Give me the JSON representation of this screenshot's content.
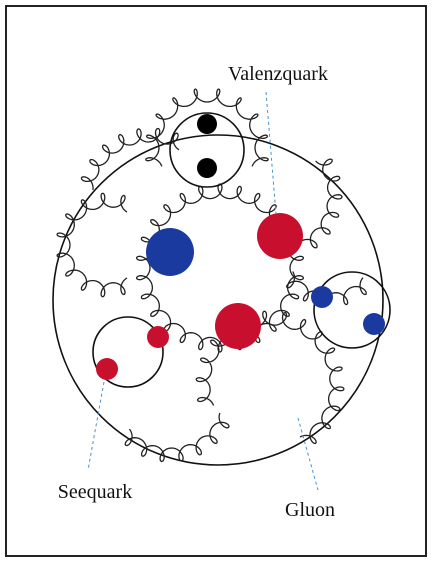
{
  "labels": {
    "valence_quark": "Valenzquark",
    "sea_quark": "Seequark",
    "gluon": "Gluon"
  }
}
